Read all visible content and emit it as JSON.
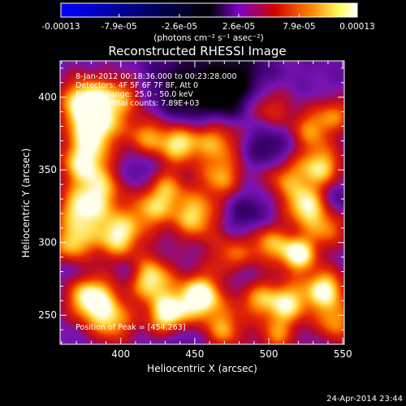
{
  "chart_data": {
    "type": "heatmap",
    "title": "Reconstructed RHESSI Image",
    "xlabel": "Heliocentric X (arcsec)",
    "ylabel": "Heliocentric Y (arcsec)",
    "xlim": [
      359,
      551
    ],
    "ylim": [
      230,
      425
    ],
    "x_ticks": [
      400,
      450,
      500,
      550
    ],
    "y_ticks": [
      250,
      300,
      350,
      400
    ],
    "colorbar": {
      "ticks": [
        "-0.00013",
        "-7.9e-05",
        "-2.6e-05",
        "2.6e-05",
        "7.9e-05",
        "0.00013"
      ],
      "tick_values": [
        -0.00013,
        -7.9e-05,
        -2.6e-05,
        2.6e-05,
        7.9e-05,
        0.00013
      ],
      "range": [
        -0.00013,
        0.00013
      ],
      "unit": "(photons cm⁻² s⁻¹ asec⁻²)",
      "colormap": [
        "#0000ff",
        "#000000",
        "#7a00c8",
        "#d00000",
        "#ff8000",
        "#ffff60",
        "#ffffff"
      ]
    },
    "annotations": {
      "time": "8-Jan-2012 00:18:36.000 to 00:23:28.000",
      "detectors": "Detectors: 4F 5F 6F 7F 8F, Att 0",
      "energy": "Energy Range: 25.0 - 50.0 keV",
      "clean": "Clean     Total counts: 7.89E+03",
      "peak": "Position of Peak = [454,263]"
    },
    "peak": [
      454,
      263
    ],
    "sources": [
      {
        "x": 375,
        "y": 398,
        "v": 0.8,
        "s": 12
      },
      {
        "x": 382,
        "y": 380,
        "v": 0.85,
        "s": 12
      },
      {
        "x": 400,
        "y": 400,
        "v": 0.55,
        "s": 11
      },
      {
        "x": 418,
        "y": 373,
        "v": 0.6,
        "s": 11
      },
      {
        "x": 440,
        "y": 368,
        "v": 0.75,
        "s": 10
      },
      {
        "x": 465,
        "y": 372,
        "v": 0.65,
        "s": 12
      },
      {
        "x": 500,
        "y": 392,
        "v": 0.45,
        "s": 11
      },
      {
        "x": 528,
        "y": 378,
        "v": 0.55,
        "s": 10
      },
      {
        "x": 545,
        "y": 388,
        "v": 0.5,
        "s": 9
      },
      {
        "x": 375,
        "y": 355,
        "v": 0.8,
        "s": 12
      },
      {
        "x": 388,
        "y": 335,
        "v": 0.55,
        "s": 11
      },
      {
        "x": 430,
        "y": 338,
        "v": 0.55,
        "s": 10
      },
      {
        "x": 468,
        "y": 345,
        "v": 0.6,
        "s": 11
      },
      {
        "x": 510,
        "y": 345,
        "v": 0.55,
        "s": 11
      },
      {
        "x": 535,
        "y": 352,
        "v": 0.75,
        "s": 11
      },
      {
        "x": 525,
        "y": 325,
        "v": 0.8,
        "s": 10
      },
      {
        "x": 372,
        "y": 322,
        "v": 0.75,
        "s": 11
      },
      {
        "x": 398,
        "y": 305,
        "v": 0.85,
        "s": 12
      },
      {
        "x": 420,
        "y": 322,
        "v": 0.55,
        "s": 10
      },
      {
        "x": 450,
        "y": 318,
        "v": 0.75,
        "s": 12
      },
      {
        "x": 475,
        "y": 290,
        "v": 0.55,
        "s": 11
      },
      {
        "x": 500,
        "y": 300,
        "v": 0.6,
        "s": 10
      },
      {
        "x": 520,
        "y": 292,
        "v": 0.9,
        "s": 9
      },
      {
        "x": 540,
        "y": 310,
        "v": 0.55,
        "s": 10
      },
      {
        "x": 367,
        "y": 298,
        "v": 0.7,
        "s": 10
      },
      {
        "x": 380,
        "y": 262,
        "v": 0.95,
        "s": 12
      },
      {
        "x": 395,
        "y": 245,
        "v": 0.6,
        "s": 11
      },
      {
        "x": 420,
        "y": 275,
        "v": 0.85,
        "s": 11
      },
      {
        "x": 432,
        "y": 250,
        "v": 0.9,
        "s": 10
      },
      {
        "x": 454,
        "y": 263,
        "v": 1.0,
        "s": 11
      },
      {
        "x": 470,
        "y": 240,
        "v": 0.6,
        "s": 10
      },
      {
        "x": 490,
        "y": 262,
        "v": 0.55,
        "s": 10
      },
      {
        "x": 512,
        "y": 258,
        "v": 0.8,
        "s": 11
      },
      {
        "x": 538,
        "y": 268,
        "v": 0.85,
        "s": 10
      },
      {
        "x": 545,
        "y": 245,
        "v": 0.6,
        "s": 10
      },
      {
        "x": 505,
        "y": 235,
        "v": 0.5,
        "s": 9
      }
    ],
    "dips": [
      {
        "x": 445,
        "y": 405,
        "v": 0.75,
        "s": 18
      },
      {
        "x": 480,
        "y": 415,
        "v": 0.6,
        "s": 14
      },
      {
        "x": 470,
        "y": 395,
        "v": 0.5,
        "s": 12
      },
      {
        "x": 500,
        "y": 365,
        "v": 0.55,
        "s": 12
      },
      {
        "x": 415,
        "y": 350,
        "v": 0.35,
        "s": 9
      },
      {
        "x": 485,
        "y": 320,
        "v": 0.45,
        "s": 11
      },
      {
        "x": 545,
        "y": 330,
        "v": 0.35,
        "s": 9
      },
      {
        "x": 405,
        "y": 280,
        "v": 0.3,
        "s": 8
      },
      {
        "x": 480,
        "y": 275,
        "v": 0.4,
        "s": 9
      },
      {
        "x": 440,
        "y": 235,
        "v": 0.3,
        "s": 9
      },
      {
        "x": 370,
        "y": 282,
        "v": 0.3,
        "s": 8
      }
    ],
    "footer": "24-Apr-2014 23:44"
  }
}
